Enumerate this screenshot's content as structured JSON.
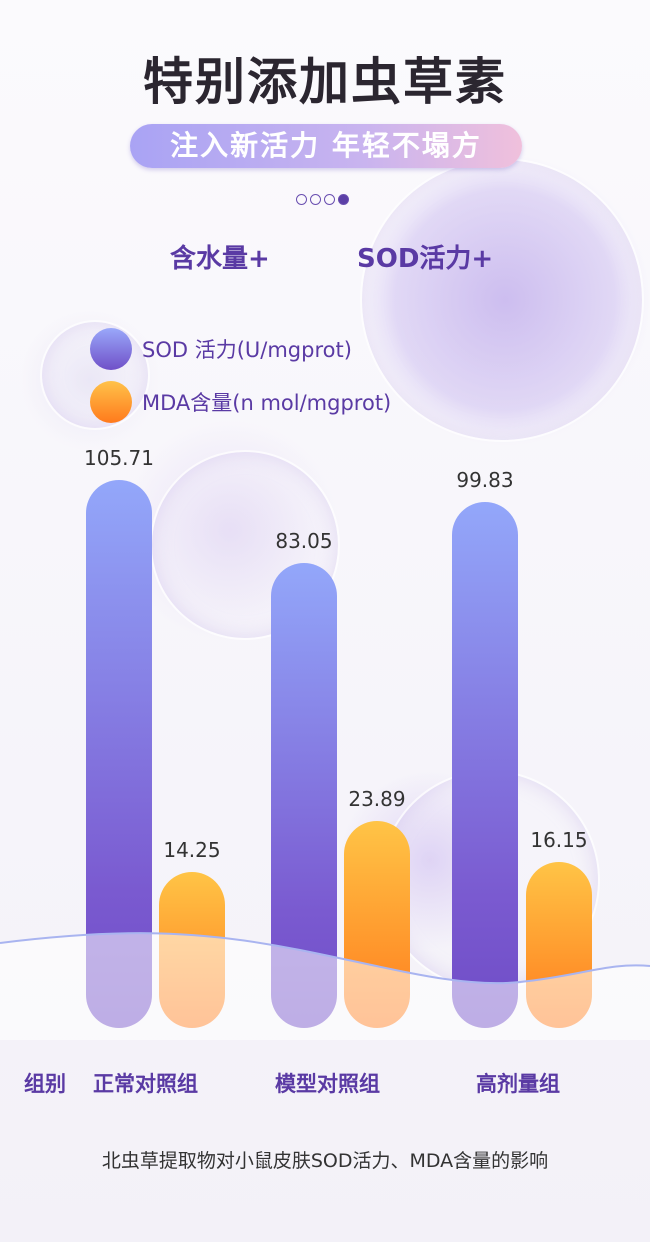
{
  "header": {
    "title": "特别添加虫草素",
    "subtitle": "注入新活力 年轻不塌方",
    "pager": {
      "count": 4,
      "active": 4
    }
  },
  "claims": [
    "含水量+",
    "SOD活力+"
  ],
  "colors": {
    "sod": "#7a5ad0",
    "mda": "#ff8c24",
    "accent": "#5a3aa4"
  },
  "chart_data": {
    "type": "bar",
    "title": "",
    "xlabel": "组别",
    "categories": [
      "正常对照组",
      "模型对照组",
      "高剂量组"
    ],
    "series": [
      {
        "name": "SOD 活力(U/mgprot)",
        "values": [
          105.71,
          83.05,
          99.83
        ],
        "labels": [
          "105.71",
          "83.05",
          "99.83"
        ]
      },
      {
        "name": "MDA含量(n mol/mgprot)",
        "values": [
          14.25,
          23.89,
          16.15
        ],
        "labels": [
          "14.25",
          "23.89",
          "16.15"
        ]
      }
    ],
    "legend": "top-left",
    "grid": false,
    "caption": "北虫草提取物对小鼠皮肤SOD活力、MDA含量的影响"
  }
}
